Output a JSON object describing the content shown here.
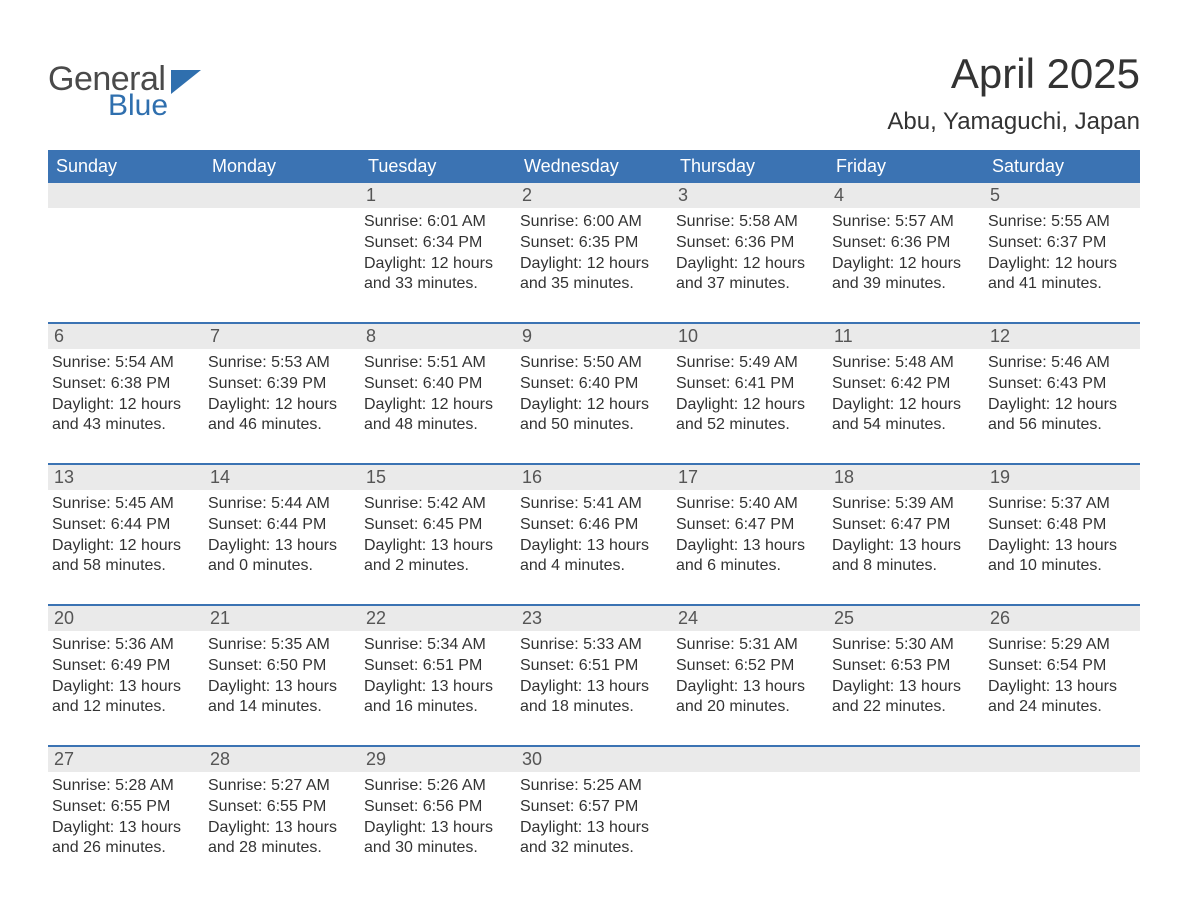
{
  "logo": {
    "line1": "General",
    "line2": "Blue"
  },
  "title": "April 2025",
  "location": "Abu, Yamaguchi, Japan",
  "colors": {
    "header_bg": "#3b73b3",
    "header_text": "#ffffff",
    "daynum_bg": "#eaeaea",
    "daynum_text": "#555555",
    "body_text": "#333333",
    "week_border": "#3b73b3",
    "page_bg": "#ffffff",
    "logo_gray": "#4a4a4a",
    "logo_blue": "#2f6fae"
  },
  "typography": {
    "title_fontsize": 42,
    "location_fontsize": 24,
    "dow_fontsize": 18,
    "daynum_fontsize": 18,
    "content_fontsize": 16,
    "font_family": "Arial"
  },
  "days_of_week": [
    "Sunday",
    "Monday",
    "Tuesday",
    "Wednesday",
    "Thursday",
    "Friday",
    "Saturday"
  ],
  "weeks": [
    [
      {
        "n": "",
        "sunrise": "",
        "sunset": "",
        "daylight": ""
      },
      {
        "n": "",
        "sunrise": "",
        "sunset": "",
        "daylight": ""
      },
      {
        "n": "1",
        "sunrise": "Sunrise: 6:01 AM",
        "sunset": "Sunset: 6:34 PM",
        "daylight": "Daylight: 12 hours and 33 minutes."
      },
      {
        "n": "2",
        "sunrise": "Sunrise: 6:00 AM",
        "sunset": "Sunset: 6:35 PM",
        "daylight": "Daylight: 12 hours and 35 minutes."
      },
      {
        "n": "3",
        "sunrise": "Sunrise: 5:58 AM",
        "sunset": "Sunset: 6:36 PM",
        "daylight": "Daylight: 12 hours and 37 minutes."
      },
      {
        "n": "4",
        "sunrise": "Sunrise: 5:57 AM",
        "sunset": "Sunset: 6:36 PM",
        "daylight": "Daylight: 12 hours and 39 minutes."
      },
      {
        "n": "5",
        "sunrise": "Sunrise: 5:55 AM",
        "sunset": "Sunset: 6:37 PM",
        "daylight": "Daylight: 12 hours and 41 minutes."
      }
    ],
    [
      {
        "n": "6",
        "sunrise": "Sunrise: 5:54 AM",
        "sunset": "Sunset: 6:38 PM",
        "daylight": "Daylight: 12 hours and 43 minutes."
      },
      {
        "n": "7",
        "sunrise": "Sunrise: 5:53 AM",
        "sunset": "Sunset: 6:39 PM",
        "daylight": "Daylight: 12 hours and 46 minutes."
      },
      {
        "n": "8",
        "sunrise": "Sunrise: 5:51 AM",
        "sunset": "Sunset: 6:40 PM",
        "daylight": "Daylight: 12 hours and 48 minutes."
      },
      {
        "n": "9",
        "sunrise": "Sunrise: 5:50 AM",
        "sunset": "Sunset: 6:40 PM",
        "daylight": "Daylight: 12 hours and 50 minutes."
      },
      {
        "n": "10",
        "sunrise": "Sunrise: 5:49 AM",
        "sunset": "Sunset: 6:41 PM",
        "daylight": "Daylight: 12 hours and 52 minutes."
      },
      {
        "n": "11",
        "sunrise": "Sunrise: 5:48 AM",
        "sunset": "Sunset: 6:42 PM",
        "daylight": "Daylight: 12 hours and 54 minutes."
      },
      {
        "n": "12",
        "sunrise": "Sunrise: 5:46 AM",
        "sunset": "Sunset: 6:43 PM",
        "daylight": "Daylight: 12 hours and 56 minutes."
      }
    ],
    [
      {
        "n": "13",
        "sunrise": "Sunrise: 5:45 AM",
        "sunset": "Sunset: 6:44 PM",
        "daylight": "Daylight: 12 hours and 58 minutes."
      },
      {
        "n": "14",
        "sunrise": "Sunrise: 5:44 AM",
        "sunset": "Sunset: 6:44 PM",
        "daylight": "Daylight: 13 hours and 0 minutes."
      },
      {
        "n": "15",
        "sunrise": "Sunrise: 5:42 AM",
        "sunset": "Sunset: 6:45 PM",
        "daylight": "Daylight: 13 hours and 2 minutes."
      },
      {
        "n": "16",
        "sunrise": "Sunrise: 5:41 AM",
        "sunset": "Sunset: 6:46 PM",
        "daylight": "Daylight: 13 hours and 4 minutes."
      },
      {
        "n": "17",
        "sunrise": "Sunrise: 5:40 AM",
        "sunset": "Sunset: 6:47 PM",
        "daylight": "Daylight: 13 hours and 6 minutes."
      },
      {
        "n": "18",
        "sunrise": "Sunrise: 5:39 AM",
        "sunset": "Sunset: 6:47 PM",
        "daylight": "Daylight: 13 hours and 8 minutes."
      },
      {
        "n": "19",
        "sunrise": "Sunrise: 5:37 AM",
        "sunset": "Sunset: 6:48 PM",
        "daylight": "Daylight: 13 hours and 10 minutes."
      }
    ],
    [
      {
        "n": "20",
        "sunrise": "Sunrise: 5:36 AM",
        "sunset": "Sunset: 6:49 PM",
        "daylight": "Daylight: 13 hours and 12 minutes."
      },
      {
        "n": "21",
        "sunrise": "Sunrise: 5:35 AM",
        "sunset": "Sunset: 6:50 PM",
        "daylight": "Daylight: 13 hours and 14 minutes."
      },
      {
        "n": "22",
        "sunrise": "Sunrise: 5:34 AM",
        "sunset": "Sunset: 6:51 PM",
        "daylight": "Daylight: 13 hours and 16 minutes."
      },
      {
        "n": "23",
        "sunrise": "Sunrise: 5:33 AM",
        "sunset": "Sunset: 6:51 PM",
        "daylight": "Daylight: 13 hours and 18 minutes."
      },
      {
        "n": "24",
        "sunrise": "Sunrise: 5:31 AM",
        "sunset": "Sunset: 6:52 PM",
        "daylight": "Daylight: 13 hours and 20 minutes."
      },
      {
        "n": "25",
        "sunrise": "Sunrise: 5:30 AM",
        "sunset": "Sunset: 6:53 PM",
        "daylight": "Daylight: 13 hours and 22 minutes."
      },
      {
        "n": "26",
        "sunrise": "Sunrise: 5:29 AM",
        "sunset": "Sunset: 6:54 PM",
        "daylight": "Daylight: 13 hours and 24 minutes."
      }
    ],
    [
      {
        "n": "27",
        "sunrise": "Sunrise: 5:28 AM",
        "sunset": "Sunset: 6:55 PM",
        "daylight": "Daylight: 13 hours and 26 minutes."
      },
      {
        "n": "28",
        "sunrise": "Sunrise: 5:27 AM",
        "sunset": "Sunset: 6:55 PM",
        "daylight": "Daylight: 13 hours and 28 minutes."
      },
      {
        "n": "29",
        "sunrise": "Sunrise: 5:26 AM",
        "sunset": "Sunset: 6:56 PM",
        "daylight": "Daylight: 13 hours and 30 minutes."
      },
      {
        "n": "30",
        "sunrise": "Sunrise: 5:25 AM",
        "sunset": "Sunset: 6:57 PM",
        "daylight": "Daylight: 13 hours and 32 minutes."
      },
      {
        "n": "",
        "sunrise": "",
        "sunset": "",
        "daylight": ""
      },
      {
        "n": "",
        "sunrise": "",
        "sunset": "",
        "daylight": ""
      },
      {
        "n": "",
        "sunrise": "",
        "sunset": "",
        "daylight": ""
      }
    ]
  ]
}
